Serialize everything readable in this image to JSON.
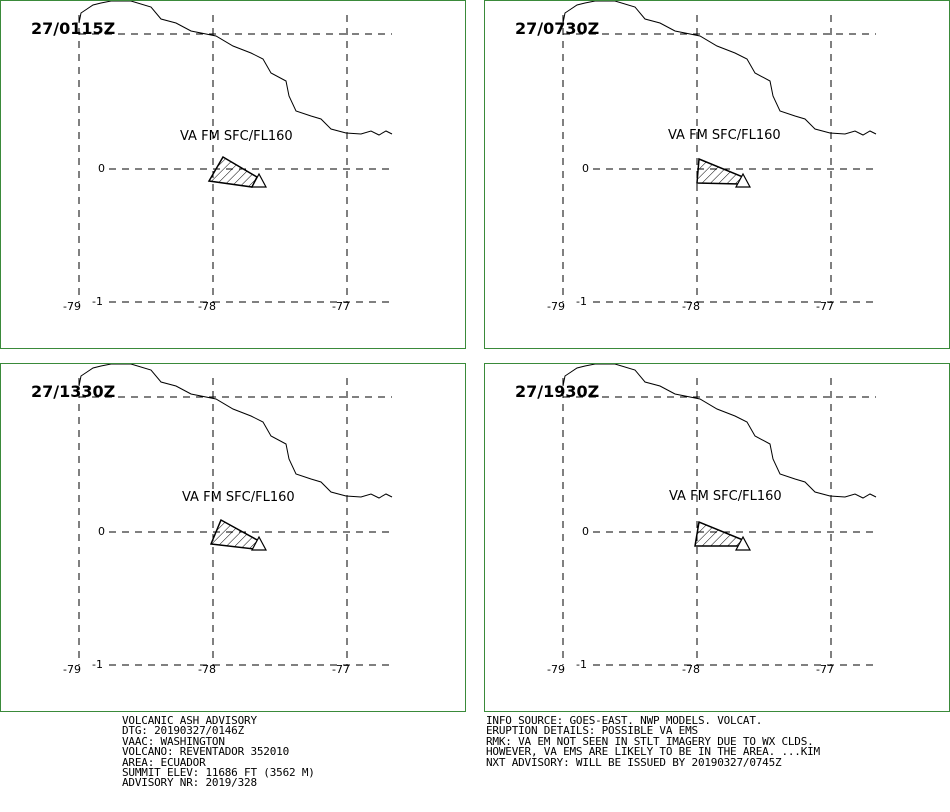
{
  "panels": [
    {
      "time": "27/0115Z",
      "label": "VA FM SFC/FL160"
    },
    {
      "time": "27/0730Z",
      "label": "VA FM SFC/FL160"
    },
    {
      "time": "27/1330Z",
      "label": "VA FM SFC/FL160"
    },
    {
      "time": "27/1930Z",
      "label": "VA FM SFC/FL160"
    }
  ],
  "axis_labels": {
    "lat": [
      "0",
      "-1"
    ],
    "lon": [
      "-79",
      "-78",
      "-77"
    ]
  },
  "colors": {
    "panel_border": "#3a8a3a",
    "lines": "#000000"
  },
  "advisory_left": [
    "VOLCANIC ASH ADVISORY",
    "DTG: 20190327/0146Z",
    "VAAC: WASHINGTON",
    "VOLCANO: REVENTADOR 352010",
    "AREA: ECUADOR",
    "SUMMIT ELEV: 11686 FT (3562 M)",
    "ADVISORY NR: 2019/328"
  ],
  "advisory_right": [
    "INFO SOURCE: GOES-EAST. NWP MODELS. VOLCAT.",
    "ERUPTION DETAILS: POSSIBLE VA EMS",
    "RMK: VA EM NOT SEEN IN STLT IMAGERY DUE TO WX CLDS.",
    "HOWEVER, VA EMS ARE LIKELY TO BE IN THE AREA. ...KIM",
    "NXT ADVISORY: WILL BE ISSUED BY 20190327/0745Z"
  ]
}
